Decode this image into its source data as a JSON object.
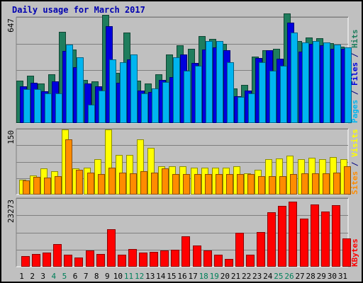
{
  "window": {
    "title": "Daily usage for March 2017"
  },
  "colors": {
    "hits": "#1f7d5d",
    "files": "#0000dd",
    "pages": "#00b5f0",
    "visits": "#ffff00",
    "sites": "#ff8c00",
    "kbytes": "#ff0000",
    "weekend_day": "#00805a",
    "weekday_day": "#000000",
    "sep_slash": "#000080"
  },
  "chart_data": [
    {
      "type": "bar",
      "title": "Daily usage for March 2017",
      "ylim": [
        0,
        647
      ],
      "y_tick_label": "647",
      "series_labels": [
        "Pages",
        "Files",
        "Hits"
      ],
      "categories": [
        "1",
        "2",
        "3",
        "4",
        "5",
        "6",
        "7",
        "8",
        "9",
        "10",
        "11",
        "12",
        "13",
        "14",
        "15",
        "16",
        "17",
        "18",
        "19",
        "20",
        "21",
        "22",
        "23",
        "24",
        "25",
        "26",
        "27",
        "28",
        "29",
        "30",
        "31"
      ],
      "series": [
        {
          "name": "Hits",
          "values": [
            259,
            288,
            240,
            297,
            555,
            450,
            263,
            255,
            662,
            306,
            550,
            260,
            240,
            298,
            420,
            474,
            453,
            531,
            512,
            482,
            213,
            234,
            406,
            446,
            451,
            668,
            501,
            523,
            519,
            489,
            467
          ]
        },
        {
          "name": "Files",
          "values": [
            223,
            246,
            193,
            256,
            442,
            340,
            240,
            224,
            592,
            245,
            388,
            200,
            190,
            262,
            281,
            418,
            366,
            450,
            463,
            443,
            162,
            200,
            395,
            445,
            391,
            612,
            436,
            484,
            476,
            455,
            451
          ]
        },
        {
          "name": "Pages",
          "values": [
            205,
            205,
            180,
            180,
            480,
            400,
            110,
            200,
            390,
            370,
            420,
            180,
            210,
            250,
            400,
            320,
            350,
            500,
            500,
            370,
            160,
            180,
            370,
            320,
            350,
            550,
            490,
            500,
            490,
            480,
            460
          ]
        }
      ]
    },
    {
      "type": "bar",
      "ylim": [
        0,
        150
      ],
      "y_tick_label": "150",
      "series_labels": [
        "Sites",
        "Visits"
      ],
      "categories": [
        "1",
        "2",
        "3",
        "4",
        "5",
        "6",
        "7",
        "8",
        "9",
        "10",
        "11",
        "12",
        "13",
        "14",
        "15",
        "16",
        "17",
        "18",
        "19",
        "20",
        "21",
        "22",
        "23",
        "24",
        "25",
        "26",
        "27",
        "28",
        "29",
        "30",
        "31"
      ],
      "series": [
        {
          "name": "Visits",
          "values": [
            34,
            44,
            60,
            54,
            148,
            60,
            62,
            80,
            148,
            90,
            90,
            126,
            106,
            64,
            64,
            64,
            62,
            62,
            62,
            62,
            64,
            48,
            56,
            80,
            82,
            88,
            80,
            84,
            80,
            86,
            80
          ]
        },
        {
          "name": "Sites",
          "values": [
            32,
            40,
            38,
            42,
            126,
            56,
            50,
            46,
            62,
            50,
            48,
            54,
            50,
            60,
            46,
            46,
            46,
            46,
            46,
            46,
            46,
            46,
            42,
            42,
            42,
            46,
            48,
            48,
            48,
            50,
            64
          ]
        }
      ]
    },
    {
      "type": "bar",
      "ylim": [
        0,
        23273
      ],
      "y_tick_label": "23273",
      "series_labels": [
        "KBytes"
      ],
      "categories": [
        "1",
        "2",
        "3",
        "4",
        "5",
        "6",
        "7",
        "8",
        "9",
        "10",
        "11",
        "12",
        "13",
        "14",
        "15",
        "16",
        "17",
        "18",
        "19",
        "20",
        "21",
        "22",
        "23",
        "24",
        "25",
        "26",
        "27",
        "28",
        "29",
        "30",
        "31"
      ],
      "series": [
        {
          "name": "KBytes",
          "values": [
            3700,
            4400,
            4900,
            7700,
            4100,
            3200,
            5600,
            4200,
            12700,
            4100,
            6100,
            4700,
            5000,
            5400,
            5700,
            10400,
            7300,
            5600,
            4000,
            2700,
            11400,
            4100,
            11800,
            18400,
            20600,
            22100,
            16200,
            21100,
            18700,
            20900,
            9500
          ]
        }
      ]
    }
  ]
}
